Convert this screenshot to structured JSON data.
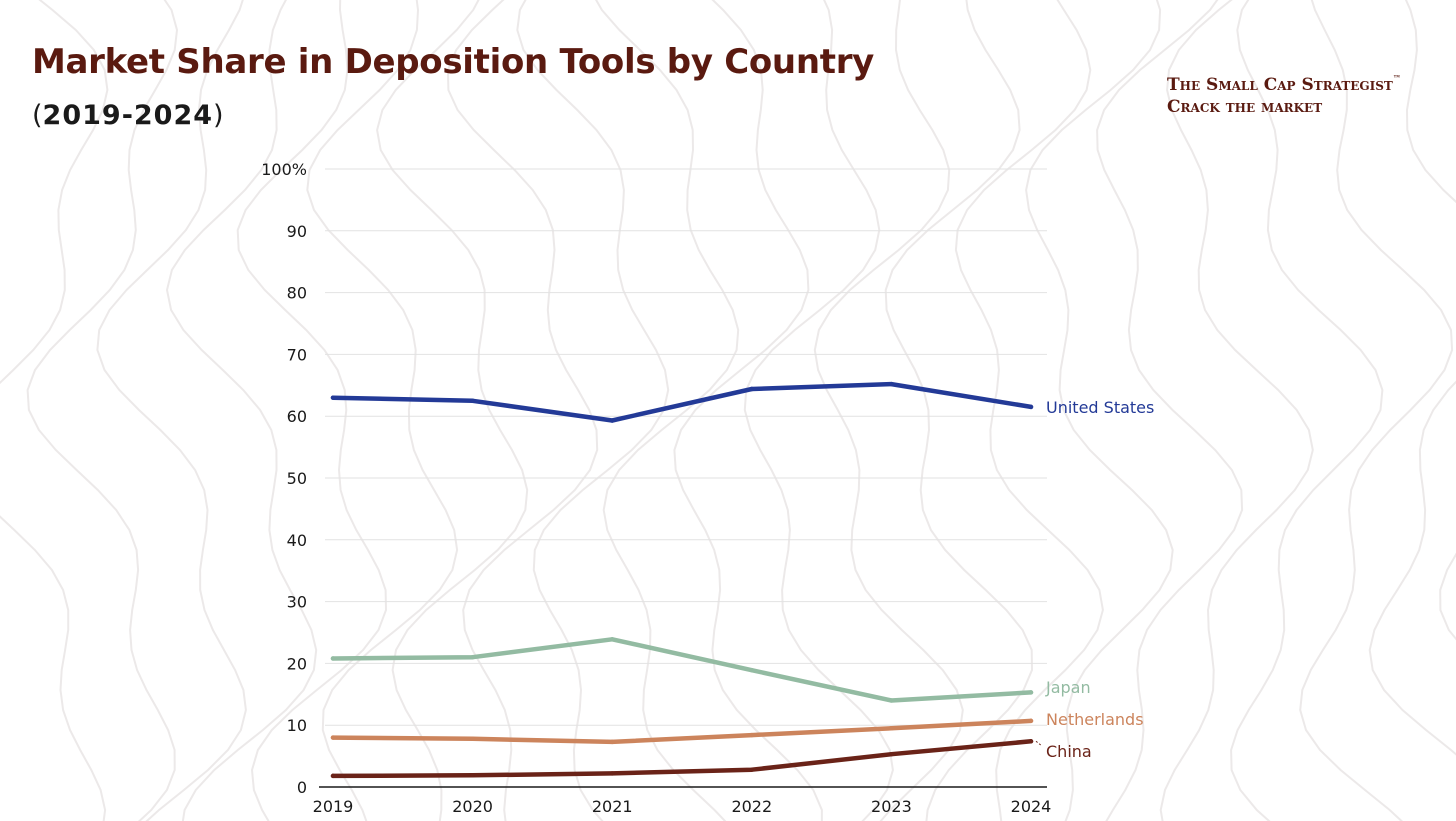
{
  "title": "Market Share in Deposition Tools by Country",
  "subtitle": "(2019-2024)",
  "subtitle_inner": "2019-2024",
  "brand": {
    "line1": "The Small Cap Strategist",
    "tm": "™",
    "line2": "Crack the market"
  },
  "colors": {
    "title": "#5a1a10",
    "united_states": "#233a97",
    "japan": "#93bba2",
    "netherlands": "#cc845c",
    "china": "#6a2318",
    "grid": "#e2e2e2"
  },
  "chart_data": {
    "type": "line",
    "title": "Market Share in Deposition Tools by Country",
    "subtitle": "(2019-2024)",
    "xlabel": "",
    "ylabel": "",
    "x": [
      2019,
      2020,
      2021,
      2022,
      2023,
      2024
    ],
    "ylim": [
      0,
      100
    ],
    "yticks": [
      0,
      10,
      20,
      30,
      40,
      50,
      60,
      70,
      80,
      90,
      100
    ],
    "ytick_labels": [
      "0",
      "10",
      "20",
      "30",
      "40",
      "50",
      "60",
      "70",
      "80",
      "90",
      "100%"
    ],
    "xtick_labels": [
      "2019",
      "2020",
      "2021",
      "2022",
      "2023",
      "2024"
    ],
    "grid": true,
    "legend": "inline labels at right end of each line",
    "series": [
      {
        "name": "United States",
        "color": "#233a97",
        "values": [
          63.0,
          62.5,
          59.3,
          64.4,
          65.2,
          61.5
        ]
      },
      {
        "name": "Japan",
        "color": "#93bba2",
        "values": [
          20.8,
          21.0,
          23.9,
          18.9,
          14.0,
          15.3
        ]
      },
      {
        "name": "Netherlands",
        "color": "#cc845c",
        "values": [
          8.0,
          7.8,
          7.3,
          8.4,
          9.5,
          10.7
        ]
      },
      {
        "name": "China",
        "color": "#6a2318",
        "values": [
          1.8,
          1.9,
          2.2,
          2.8,
          5.3,
          7.4
        ]
      }
    ]
  }
}
